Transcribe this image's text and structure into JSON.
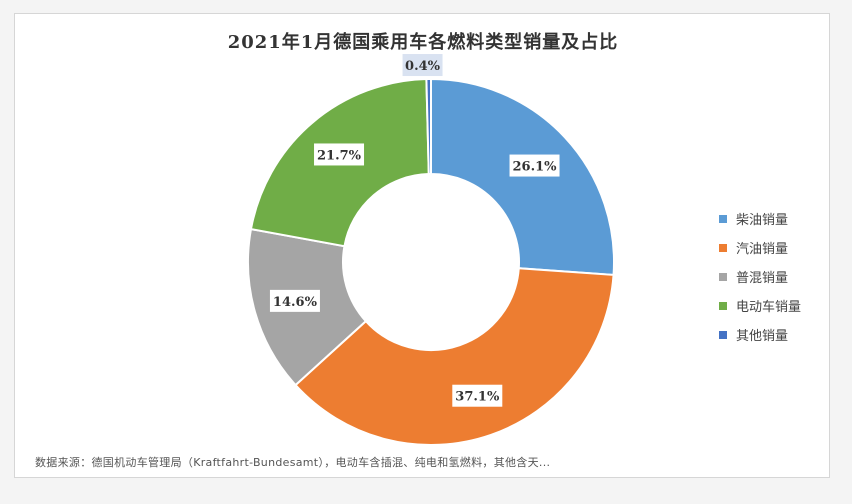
{
  "chart_data": {
    "type": "pie",
    "title": "2021年1月德国乘用车各燃料类型销量及占比",
    "series": [
      {
        "name": "柴油销量",
        "value": 26.1,
        "label": "26.1%",
        "color": "#5b9bd5"
      },
      {
        "name": "汽油销量",
        "value": 37.1,
        "label": "37.1%",
        "color": "#ed7d31"
      },
      {
        "name": "普混销量",
        "value": 14.6,
        "label": "14.6%",
        "color": "#a5a5a5"
      },
      {
        "name": "电动车销量",
        "value": 21.7,
        "label": "21.7%",
        "color": "#70ad47"
      },
      {
        "name": "其他销量",
        "value": 0.4,
        "label": "0.4%",
        "color": "#4472c4"
      }
    ],
    "legend": "right",
    "donut": true
  },
  "source_note": "数据来源：德国机动车管理局（Kraftfahrt-Bundesamt），电动车含插混、纯电和氢燃料，其他含天..."
}
